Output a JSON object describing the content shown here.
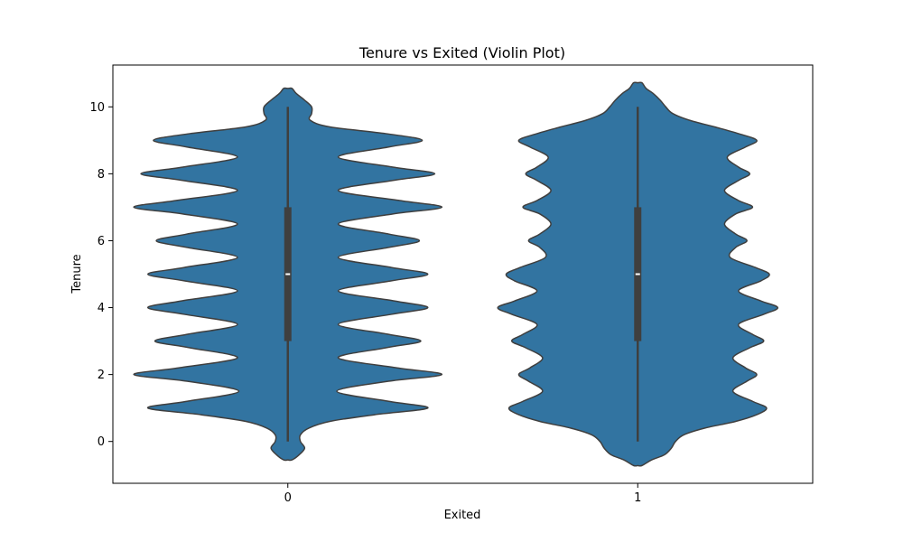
{
  "chart_data": {
    "type": "violin",
    "title": "Tenure vs Exited (Violin Plot)",
    "xlabel": "Exited",
    "ylabel": "Tenure",
    "categories": [
      "0",
      "1"
    ],
    "ylim": [
      -1.25,
      11.25
    ],
    "yticks": [
      0,
      2,
      4,
      6,
      8,
      10
    ],
    "grid": false,
    "color": "#3274a1",
    "edge_color": "#3f3f3f",
    "violins": [
      {
        "category": "0",
        "min": 0,
        "q1": 3,
        "median": 5,
        "q3": 7,
        "max": 10,
        "extent": [
          -0.55,
          10.55
        ],
        "density": [
          [
            -0.55,
            0.03
          ],
          [
            -0.4,
            0.08
          ],
          [
            -0.2,
            0.12
          ],
          [
            0.0,
            0.09
          ],
          [
            0.2,
            0.09
          ],
          [
            0.4,
            0.15
          ],
          [
            0.6,
            0.3
          ],
          [
            0.8,
            0.62
          ],
          [
            1.0,
            1.0
          ],
          [
            1.2,
            0.72
          ],
          [
            1.5,
            0.35
          ],
          [
            1.8,
            0.72
          ],
          [
            2.0,
            1.1
          ],
          [
            2.2,
            0.78
          ],
          [
            2.5,
            0.36
          ],
          [
            2.8,
            0.7
          ],
          [
            3.0,
            0.95
          ],
          [
            3.2,
            0.72
          ],
          [
            3.5,
            0.36
          ],
          [
            3.8,
            0.74
          ],
          [
            4.0,
            1.0
          ],
          [
            4.2,
            0.76
          ],
          [
            4.5,
            0.36
          ],
          [
            4.8,
            0.74
          ],
          [
            5.0,
            1.0
          ],
          [
            5.2,
            0.74
          ],
          [
            5.5,
            0.36
          ],
          [
            5.8,
            0.72
          ],
          [
            6.0,
            0.94
          ],
          [
            6.2,
            0.72
          ],
          [
            6.5,
            0.36
          ],
          [
            6.8,
            0.75
          ],
          [
            7.0,
            1.1
          ],
          [
            7.2,
            0.8
          ],
          [
            7.5,
            0.36
          ],
          [
            7.8,
            0.75
          ],
          [
            8.0,
            1.05
          ],
          [
            8.2,
            0.75
          ],
          [
            8.5,
            0.36
          ],
          [
            8.8,
            0.72
          ],
          [
            9.0,
            0.96
          ],
          [
            9.2,
            0.7
          ],
          [
            9.4,
            0.3
          ],
          [
            9.6,
            0.16
          ],
          [
            9.8,
            0.17
          ],
          [
            10.0,
            0.17
          ],
          [
            10.2,
            0.12
          ],
          [
            10.4,
            0.06
          ],
          [
            10.55,
            0.03
          ]
        ]
      },
      {
        "category": "1",
        "min": 0,
        "q1": 3,
        "median": 5,
        "q3": 7,
        "max": 10,
        "extent": [
          -0.72,
          10.72
        ],
        "density": [
          [
            -0.72,
            0.03
          ],
          [
            -0.55,
            0.1
          ],
          [
            -0.4,
            0.19
          ],
          [
            -0.2,
            0.24
          ],
          [
            0.0,
            0.27
          ],
          [
            0.2,
            0.33
          ],
          [
            0.4,
            0.48
          ],
          [
            0.6,
            0.7
          ],
          [
            0.8,
            0.85
          ],
          [
            1.0,
            0.92
          ],
          [
            1.2,
            0.82
          ],
          [
            1.5,
            0.68
          ],
          [
            1.8,
            0.78
          ],
          [
            2.0,
            0.85
          ],
          [
            2.2,
            0.77
          ],
          [
            2.5,
            0.68
          ],
          [
            2.8,
            0.8
          ],
          [
            3.0,
            0.9
          ],
          [
            3.2,
            0.82
          ],
          [
            3.5,
            0.72
          ],
          [
            3.8,
            0.9
          ],
          [
            4.0,
            1.0
          ],
          [
            4.2,
            0.88
          ],
          [
            4.5,
            0.72
          ],
          [
            4.8,
            0.88
          ],
          [
            5.0,
            0.94
          ],
          [
            5.2,
            0.84
          ],
          [
            5.5,
            0.66
          ],
          [
            5.8,
            0.7
          ],
          [
            6.0,
            0.78
          ],
          [
            6.2,
            0.7
          ],
          [
            6.5,
            0.62
          ],
          [
            6.8,
            0.7
          ],
          [
            7.0,
            0.82
          ],
          [
            7.2,
            0.72
          ],
          [
            7.5,
            0.62
          ],
          [
            7.8,
            0.72
          ],
          [
            8.0,
            0.8
          ],
          [
            8.2,
            0.72
          ],
          [
            8.5,
            0.64
          ],
          [
            8.8,
            0.77
          ],
          [
            9.0,
            0.85
          ],
          [
            9.2,
            0.72
          ],
          [
            9.4,
            0.55
          ],
          [
            9.6,
            0.37
          ],
          [
            9.8,
            0.25
          ],
          [
            10.0,
            0.2
          ],
          [
            10.2,
            0.16
          ],
          [
            10.4,
            0.11
          ],
          [
            10.55,
            0.06
          ],
          [
            10.72,
            0.03
          ]
        ]
      }
    ]
  }
}
